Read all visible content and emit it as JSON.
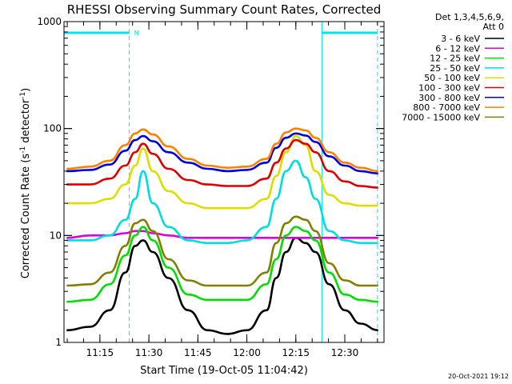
{
  "chart_data": {
    "type": "line",
    "title": "RHESSI Observing Summary Count Rates, Corrected",
    "xlabel": "Start Time (19-Oct-05 11:04:42)",
    "ylabel": "Corrected Count Rate (s⁻¹ detector⁻¹)",
    "ylabel_parts": {
      "a": "Corrected Count Rate (s",
      "b": "-1",
      "c": " detector",
      "d": "-1",
      "e": ")"
    },
    "y_scale": "log",
    "ylim": [
      1,
      1000
    ],
    "xlim_minutes": [
      11.0667,
      12.7
    ],
    "y_ticks": [
      "1",
      "10",
      "100",
      "1000"
    ],
    "x_ticks": [
      {
        "label": "11:15",
        "t": 11.25
      },
      {
        "label": "11:30",
        "t": 11.5
      },
      {
        "label": "11:45",
        "t": 11.75
      },
      {
        "label": "12:00",
        "t": 12.0
      },
      {
        "label": "12:15",
        "t": 12.25
      },
      {
        "label": "12:30",
        "t": 12.5
      }
    ],
    "legend_header": [
      "Det 1,3,4,5,6,9,",
      "Att 0"
    ],
    "night_mark": "N",
    "night_intervals": [
      [
        11.0667,
        11.4
      ],
      [
        12.3833,
        12.6667
      ]
    ],
    "observation_bounds": [
      11.0667,
      12.6667
    ],
    "x_hours": [
      11.08,
      11.2,
      11.3,
      11.38,
      11.43,
      11.47,
      11.52,
      11.6,
      11.7,
      11.8,
      11.9,
      12.0,
      12.1,
      12.15,
      12.2,
      12.25,
      12.3,
      12.35,
      12.42,
      12.5,
      12.58,
      12.67
    ],
    "series": [
      {
        "name": "3 - 6 keV",
        "color": "#000000",
        "values": [
          1.3,
          1.4,
          2.0,
          4.5,
          8.0,
          9.0,
          7.0,
          4.0,
          2.0,
          1.3,
          1.2,
          1.3,
          2.0,
          4.0,
          7.0,
          9.5,
          8.5,
          7.0,
          3.5,
          2.0,
          1.5,
          1.3
        ]
      },
      {
        "name": "6 - 12 keV",
        "color": "#dd00dd",
        "values": [
          9.5,
          10,
          10,
          10.5,
          11,
          11,
          10.5,
          10,
          9.5,
          9.5,
          9.5,
          9.5,
          9.5,
          9.5,
          9.5,
          9.5,
          9.5,
          9.5,
          9.5,
          9.5,
          9.5,
          9.5
        ]
      },
      {
        "name": "12 - 25 keV",
        "color": "#00dd00",
        "values": [
          2.4,
          2.5,
          3.5,
          6.5,
          10,
          12,
          9,
          5,
          2.8,
          2.5,
          2.5,
          2.5,
          3.5,
          6,
          10,
          12,
          11,
          9,
          4.5,
          2.8,
          2.5,
          2.4
        ]
      },
      {
        "name": "25 - 50 keV",
        "color": "#00dddd",
        "values": [
          9,
          9,
          10,
          14,
          22,
          40,
          20,
          12,
          9,
          8.5,
          8.5,
          9,
          12,
          22,
          40,
          50,
          35,
          22,
          11,
          9,
          8.5,
          8.5
        ]
      },
      {
        "name": "50 - 100 keV",
        "color": "#dddd00",
        "values": [
          20,
          20,
          22,
          30,
          45,
          65,
          40,
          26,
          20,
          18,
          18,
          18,
          22,
          36,
          60,
          85,
          70,
          40,
          24,
          20,
          19,
          19
        ]
      },
      {
        "name": "100 - 300 keV",
        "color": "#dd0000",
        "values": [
          30,
          30,
          34,
          45,
          60,
          72,
          58,
          42,
          33,
          30,
          29,
          29,
          34,
          48,
          65,
          78,
          72,
          60,
          40,
          32,
          29,
          28
        ]
      },
      {
        "name": "300 - 800 keV",
        "color": "#0000dd",
        "values": [
          40,
          41,
          46,
          62,
          78,
          85,
          76,
          60,
          48,
          42,
          40,
          41,
          48,
          66,
          82,
          90,
          86,
          75,
          55,
          45,
          40,
          38
        ]
      },
      {
        "name": "800 - 7000 keV",
        "color": "#ff8000",
        "values": [
          42,
          44,
          50,
          70,
          90,
          98,
          88,
          68,
          52,
          45,
          43,
          44,
          52,
          72,
          92,
          100,
          96,
          82,
          60,
          48,
          43,
          40
        ]
      },
      {
        "name": "7000 - 15000 keV",
        "color": "#808000",
        "values": [
          3.4,
          3.5,
          4.5,
          8,
          13,
          14,
          11,
          6,
          3.8,
          3.4,
          3.4,
          3.4,
          4.5,
          8.5,
          13,
          15,
          14,
          11,
          5.5,
          3.8,
          3.4,
          3.4
        ]
      }
    ]
  },
  "footer": {
    "timestamp": "20-Oct-2021 19:12"
  }
}
